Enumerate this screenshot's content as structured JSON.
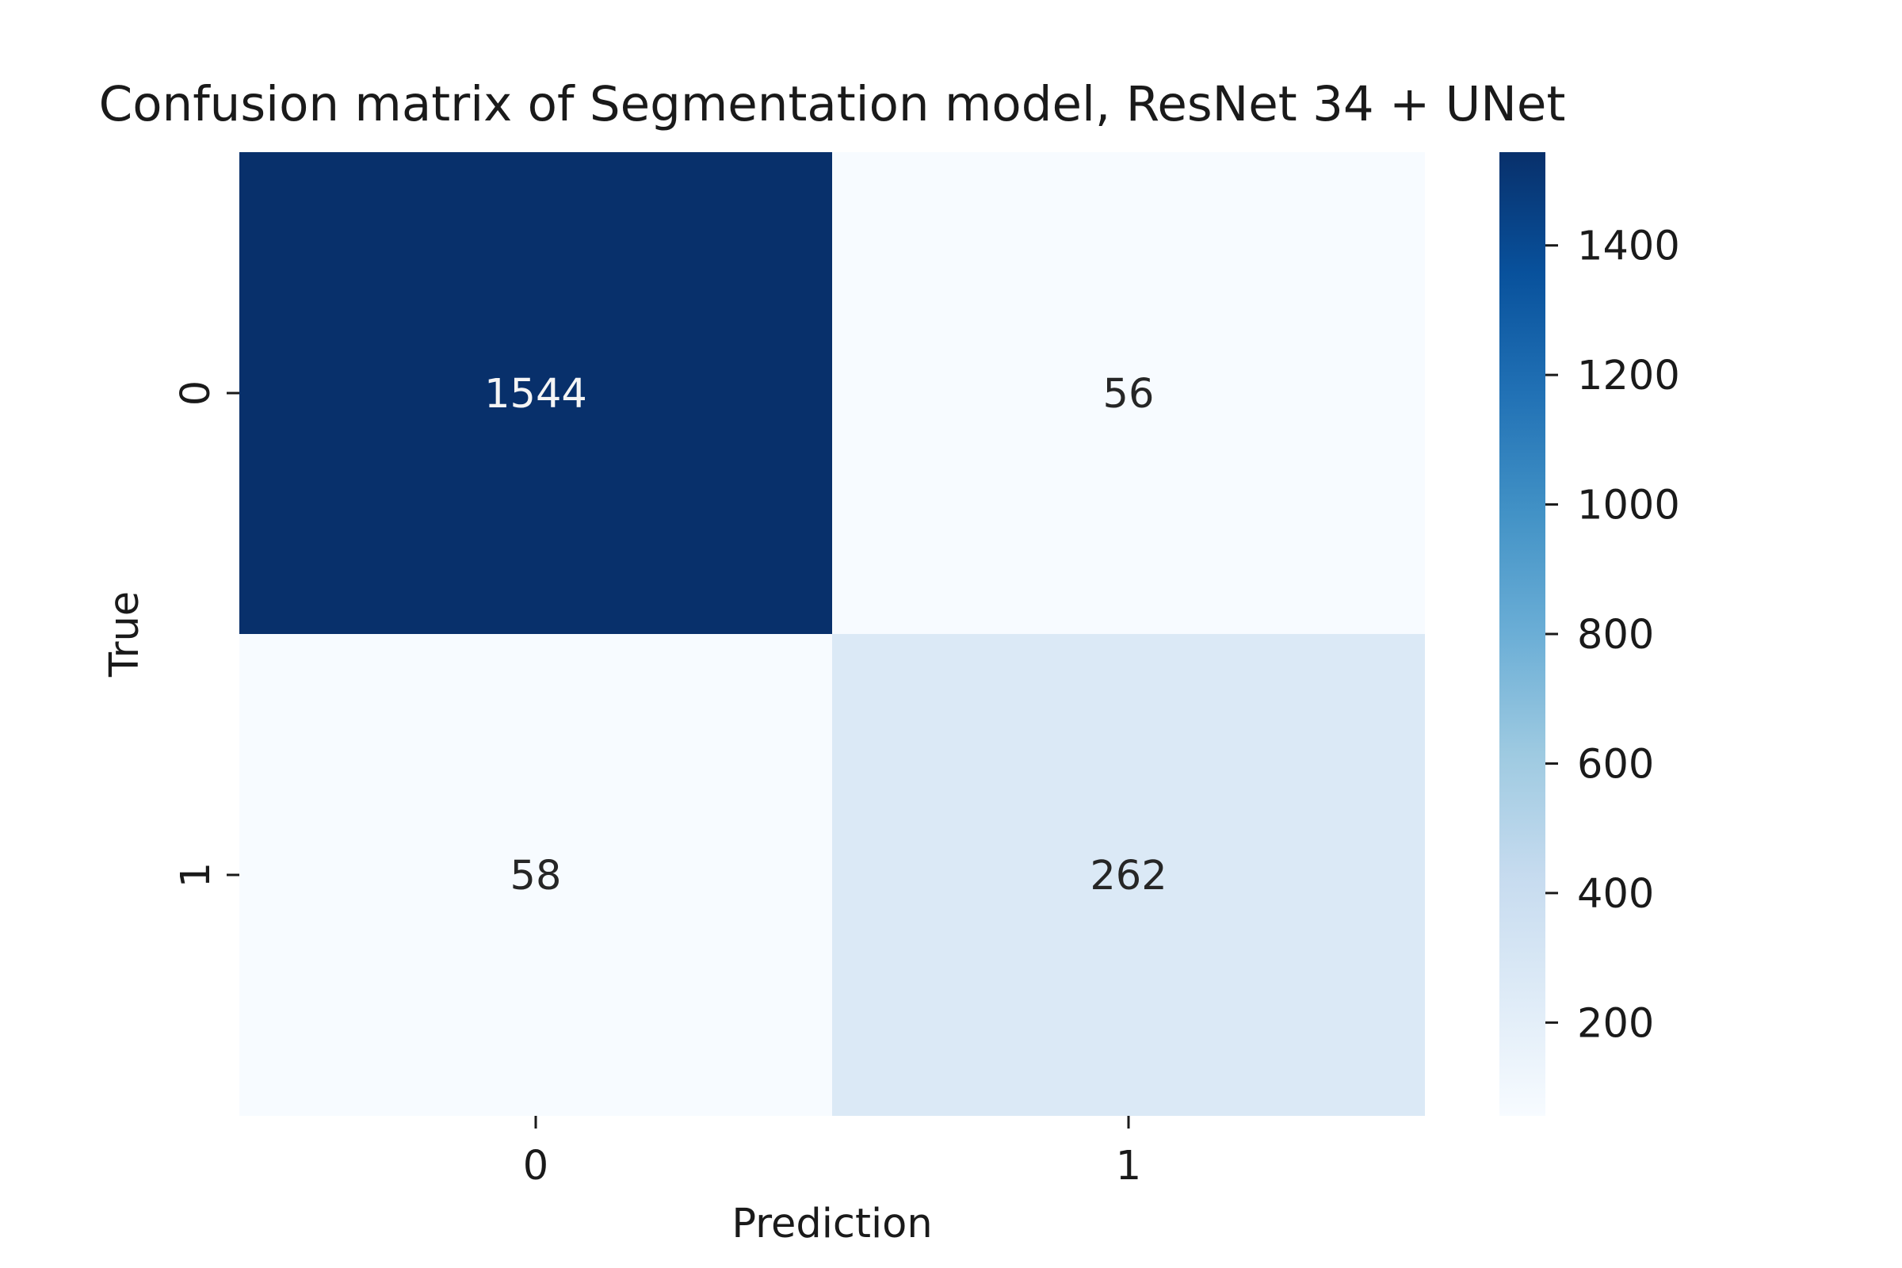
{
  "chart_data": {
    "type": "heatmap",
    "title": "Confusion matrix of Segmentation model, ResNet 34 + UNet",
    "xlabel": "Prediction",
    "ylabel": "True",
    "x_categories": [
      "0",
      "1"
    ],
    "y_categories": [
      "0",
      "1"
    ],
    "values": [
      [
        1544,
        56
      ],
      [
        58,
        262
      ]
    ],
    "colormap": "Blues",
    "colorbar": {
      "range": [
        56,
        1544
      ],
      "ticks": [
        200,
        400,
        600,
        800,
        1000,
        1200,
        1400
      ],
      "tick_labels": [
        "200",
        "400",
        "600",
        "800",
        "1000",
        "1200",
        "1400"
      ]
    }
  }
}
